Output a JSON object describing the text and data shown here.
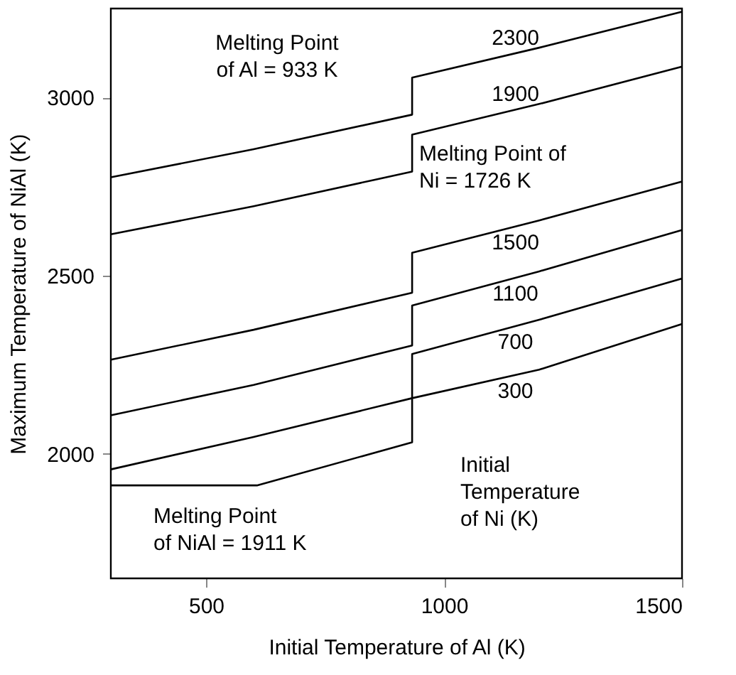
{
  "chart_data": {
    "type": "line",
    "xlabel": "Initial Temperature of Al  (K)",
    "ylabel": "Maximum Temperature of NiAl  (K)",
    "xlim": [
      300,
      1500
    ],
    "xticks": [
      500,
      1000,
      1500
    ],
    "ylim": [
      1650,
      3250
    ],
    "yticks": [
      2000,
      2500,
      3000
    ],
    "grid": false,
    "legend": false,
    "marker": "none",
    "line_style": "solid",
    "series": [
      {
        "name": "2300",
        "color": "#000000",
        "x": [
          300,
          600,
          933,
          933,
          1200,
          1500
        ],
        "values": [
          2776,
          2855,
          2952,
          3056,
          3140,
          3241
        ]
      },
      {
        "name": "1900",
        "color": "#000000",
        "x": [
          300,
          600,
          933,
          933,
          1200,
          1500
        ],
        "values": [
          2616,
          2695,
          2792,
          2896,
          2982,
          3087
        ]
      },
      {
        "name": "1500",
        "color": "#000000",
        "x": [
          300,
          600,
          933,
          933,
          1200,
          1500
        ],
        "values": [
          2264,
          2348,
          2452,
          2564,
          2655,
          2764
        ]
      },
      {
        "name": "1100",
        "color": "#000000",
        "x": [
          300,
          600,
          933,
          933,
          1200,
          1500
        ],
        "values": [
          2108,
          2193,
          2304,
          2416,
          2512,
          2628
        ]
      },
      {
        "name": "700",
        "color": "#000000",
        "x": [
          300,
          600,
          933,
          933,
          1200,
          1500
        ],
        "values": [
          1956,
          2047,
          2156,
          2280,
          2376,
          2492
        ]
      },
      {
        "name": "300",
        "color": "#000000",
        "x": [
          300,
          607,
          933,
          933,
          1200,
          1500
        ],
        "values": [
          1911,
          1911,
          2032,
          2156,
          2236,
          2364
        ]
      }
    ],
    "annotations": [
      "Melting Point\nof Al = 933 K",
      "Melting Point of\nNi = 1726 K",
      "Melting Point\nof NiAl = 1911 K",
      "Initial\nTemperature\nof Ni  (K)"
    ]
  }
}
